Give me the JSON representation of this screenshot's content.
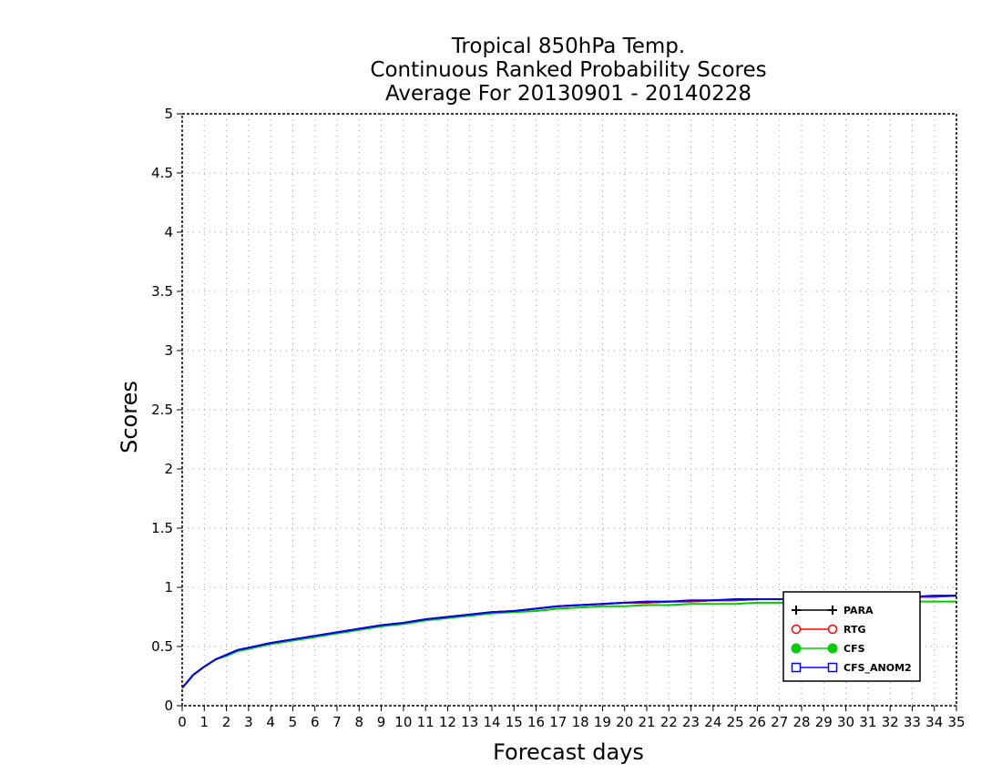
{
  "chart_data": {
    "type": "line",
    "title": [
      "Tropical 850hPa Temp.",
      "Continuous Ranked Probability Scores",
      "Average For 20130901 - 20140228"
    ],
    "xlabel": "Forecast days",
    "ylabel": "Scores",
    "xlim": [
      0,
      35
    ],
    "ylim": [
      0,
      5
    ],
    "xticks": [
      0,
      1,
      2,
      3,
      4,
      5,
      6,
      7,
      8,
      9,
      10,
      11,
      12,
      13,
      14,
      15,
      16,
      17,
      18,
      19,
      20,
      21,
      22,
      23,
      24,
      25,
      26,
      27,
      28,
      29,
      30,
      31,
      32,
      33,
      34,
      35
    ],
    "yticks": [
      0,
      0.5,
      1,
      1.5,
      2,
      2.5,
      3,
      3.5,
      4,
      4.5,
      5
    ],
    "ytick_labels": [
      "0",
      "0.5",
      "1",
      "1.5",
      "2",
      "2.5",
      "3",
      "3.5",
      "4",
      "4.5",
      "5"
    ],
    "grid": true,
    "legend_position": "bottom-right",
    "x": [
      0,
      0.5,
      1,
      1.5,
      2,
      2.5,
      3,
      4,
      5,
      6,
      7,
      8,
      9,
      10,
      11,
      12,
      13,
      14,
      15,
      16,
      17,
      18,
      19,
      20,
      21,
      22,
      23,
      24,
      25,
      26,
      27,
      28,
      29,
      30,
      31,
      32,
      33,
      34,
      35
    ],
    "series": [
      {
        "name": "PARA",
        "color": "#000000",
        "marker": "plus",
        "values": [
          0.15,
          0.26,
          0.33,
          0.39,
          0.43,
          0.47,
          0.49,
          0.53,
          0.56,
          0.59,
          0.62,
          0.65,
          0.68,
          0.7,
          0.73,
          0.75,
          0.77,
          0.79,
          0.8,
          0.82,
          0.84,
          0.85,
          0.86,
          0.87,
          0.87,
          0.88,
          0.88,
          0.89,
          0.89,
          0.9,
          0.9,
          0.9,
          0.91,
          0.91,
          0.91,
          0.92,
          0.92,
          0.92,
          0.93
        ]
      },
      {
        "name": "RTG",
        "color": "#ff0000",
        "marker": "circle-open",
        "values": [
          0.15,
          0.26,
          0.33,
          0.39,
          0.43,
          0.47,
          0.49,
          0.53,
          0.56,
          0.59,
          0.62,
          0.65,
          0.68,
          0.7,
          0.73,
          0.75,
          0.77,
          0.79,
          0.8,
          0.82,
          0.84,
          0.85,
          0.86,
          0.87,
          0.87,
          0.88,
          0.88,
          0.89,
          0.89,
          0.9,
          0.9,
          0.9,
          0.91,
          0.91,
          0.91,
          0.92,
          0.92,
          0.92,
          0.93
        ]
      },
      {
        "name": "CFS",
        "color": "#00cc00",
        "marker": "circle-filled",
        "values": [
          0.15,
          0.26,
          0.33,
          0.39,
          0.42,
          0.46,
          0.48,
          0.52,
          0.55,
          0.58,
          0.61,
          0.64,
          0.67,
          0.69,
          0.72,
          0.74,
          0.76,
          0.78,
          0.79,
          0.8,
          0.82,
          0.83,
          0.84,
          0.84,
          0.85,
          0.85,
          0.86,
          0.86,
          0.86,
          0.87,
          0.87,
          0.87,
          0.87,
          0.87,
          0.88,
          0.88,
          0.88,
          0.88,
          0.88
        ]
      },
      {
        "name": "CFS_ANOM2",
        "color": "#0000ff",
        "marker": "square-open",
        "values": [
          0.15,
          0.26,
          0.33,
          0.39,
          0.43,
          0.47,
          0.49,
          0.53,
          0.56,
          0.59,
          0.62,
          0.65,
          0.68,
          0.7,
          0.73,
          0.75,
          0.77,
          0.79,
          0.8,
          0.82,
          0.84,
          0.85,
          0.86,
          0.87,
          0.88,
          0.88,
          0.89,
          0.89,
          0.9,
          0.9,
          0.9,
          0.91,
          0.91,
          0.91,
          0.92,
          0.92,
          0.92,
          0.93,
          0.93
        ]
      }
    ]
  }
}
